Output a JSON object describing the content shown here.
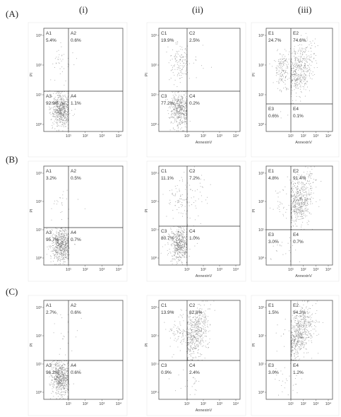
{
  "row_labels": [
    "(A)",
    "(B)",
    "(C)"
  ],
  "col_labels": [
    "(i)",
    "(ii)",
    "(iii)"
  ],
  "chart_data": [
    {
      "type": "scatter",
      "row": "A",
      "col": "i",
      "xlabel": "",
      "ylabel": "PI",
      "quadrants": [
        {
          "name": "A1",
          "value": "5.4%"
        },
        {
          "name": "A2",
          "value": "0.6%"
        },
        {
          "name": "A3",
          "value": "92.9%"
        },
        {
          "name": "A4",
          "value": "1.1%"
        }
      ]
    },
    {
      "type": "scatter",
      "row": "A",
      "col": "ii",
      "xlabel": "AnnexinV",
      "ylabel": "PI",
      "quadrants": [
        {
          "name": "C1",
          "value": "19.9%"
        },
        {
          "name": "C2",
          "value": "2.5%"
        },
        {
          "name": "C3",
          "value": "77.2%"
        },
        {
          "name": "C4",
          "value": "0.2%"
        }
      ]
    },
    {
      "type": "scatter",
      "row": "A",
      "col": "iii",
      "xlabel": "AnnexinV",
      "ylabel": "PI",
      "quadrants": [
        {
          "name": "E1",
          "value": "24.7%"
        },
        {
          "name": "E2",
          "value": "74.6%"
        },
        {
          "name": "E3",
          "value": "0.6%"
        },
        {
          "name": "E4",
          "value": "0.1%"
        }
      ]
    },
    {
      "type": "scatter",
      "row": "B",
      "col": "i",
      "xlabel": "",
      "ylabel": "PI",
      "quadrants": [
        {
          "name": "A1",
          "value": "3.2%"
        },
        {
          "name": "A2",
          "value": "0.5%"
        },
        {
          "name": "A3",
          "value": "95.7%"
        },
        {
          "name": "A4",
          "value": "0.7%"
        }
      ]
    },
    {
      "type": "scatter",
      "row": "B",
      "col": "ii",
      "xlabel": "AnnexinV",
      "ylabel": "PI",
      "quadrants": [
        {
          "name": "C1",
          "value": "11.1%"
        },
        {
          "name": "C2",
          "value": "7.2%"
        },
        {
          "name": "C3",
          "value": "80.7%"
        },
        {
          "name": "C4",
          "value": "1.0%"
        }
      ]
    },
    {
      "type": "scatter",
      "row": "B",
      "col": "iii",
      "xlabel": "AnnexinV",
      "ylabel": "PI",
      "quadrants": [
        {
          "name": "E1",
          "value": "4.8%"
        },
        {
          "name": "E2",
          "value": "91.4%"
        },
        {
          "name": "E3",
          "value": "3.0%"
        },
        {
          "name": "E4",
          "value": "0.7%"
        }
      ]
    },
    {
      "type": "scatter",
      "row": "C",
      "col": "i",
      "xlabel": "",
      "ylabel": "PI",
      "quadrants": [
        {
          "name": "A1",
          "value": "2.7%"
        },
        {
          "name": "A2",
          "value": "0.6%"
        },
        {
          "name": "A3",
          "value": "96.2%"
        },
        {
          "name": "A4",
          "value": "0.6%"
        }
      ]
    },
    {
      "type": "scatter",
      "row": "C",
      "col": "ii",
      "xlabel": "AnnexinV",
      "ylabel": "PI",
      "quadrants": [
        {
          "name": "C1",
          "value": "13.9%"
        },
        {
          "name": "C2",
          "value": "82.8%"
        },
        {
          "name": "C3",
          "value": "0.9%"
        },
        {
          "name": "C4",
          "value": "2.4%"
        }
      ]
    },
    {
      "type": "scatter",
      "row": "C",
      "col": "iii",
      "xlabel": "",
      "ylabel": "PI",
      "quadrants": [
        {
          "name": "E1",
          "value": "1.5%"
        },
        {
          "name": "E2",
          "value": "94.3%"
        },
        {
          "name": "E3",
          "value": "3.0%"
        },
        {
          "name": "E4",
          "value": "1.2%"
        }
      ]
    }
  ],
  "axis_ticks": {
    "x": [
      "10¹",
      "10²",
      "10³",
      "10⁴"
    ],
    "y": [
      "10⁰",
      "10¹",
      "10²",
      "10³"
    ]
  }
}
